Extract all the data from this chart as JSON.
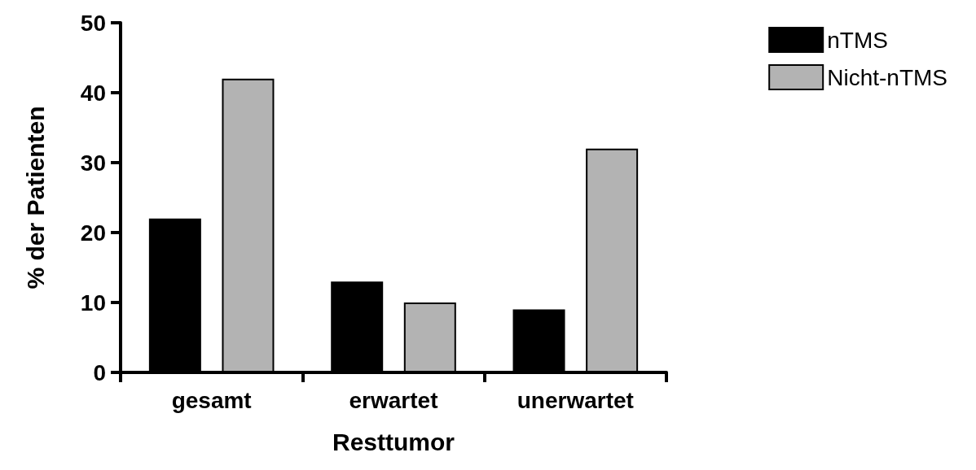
{
  "chart_data": {
    "type": "bar",
    "xlabel": "Resttumor",
    "ylabel": "% der Patienten",
    "categories": [
      "gesamt",
      "erwartet",
      "unerwartet"
    ],
    "series": [
      {
        "name": "nTMS",
        "color": "#000000",
        "values": [
          22,
          13,
          9
        ]
      },
      {
        "name": "Nicht-nTMS",
        "color": "#b3b3b3",
        "values": [
          42,
          10,
          32
        ]
      }
    ],
    "ylim": [
      0,
      50
    ],
    "yticks": [
      0,
      10,
      20,
      30,
      40,
      50
    ],
    "grid": false,
    "legend": "top right"
  }
}
